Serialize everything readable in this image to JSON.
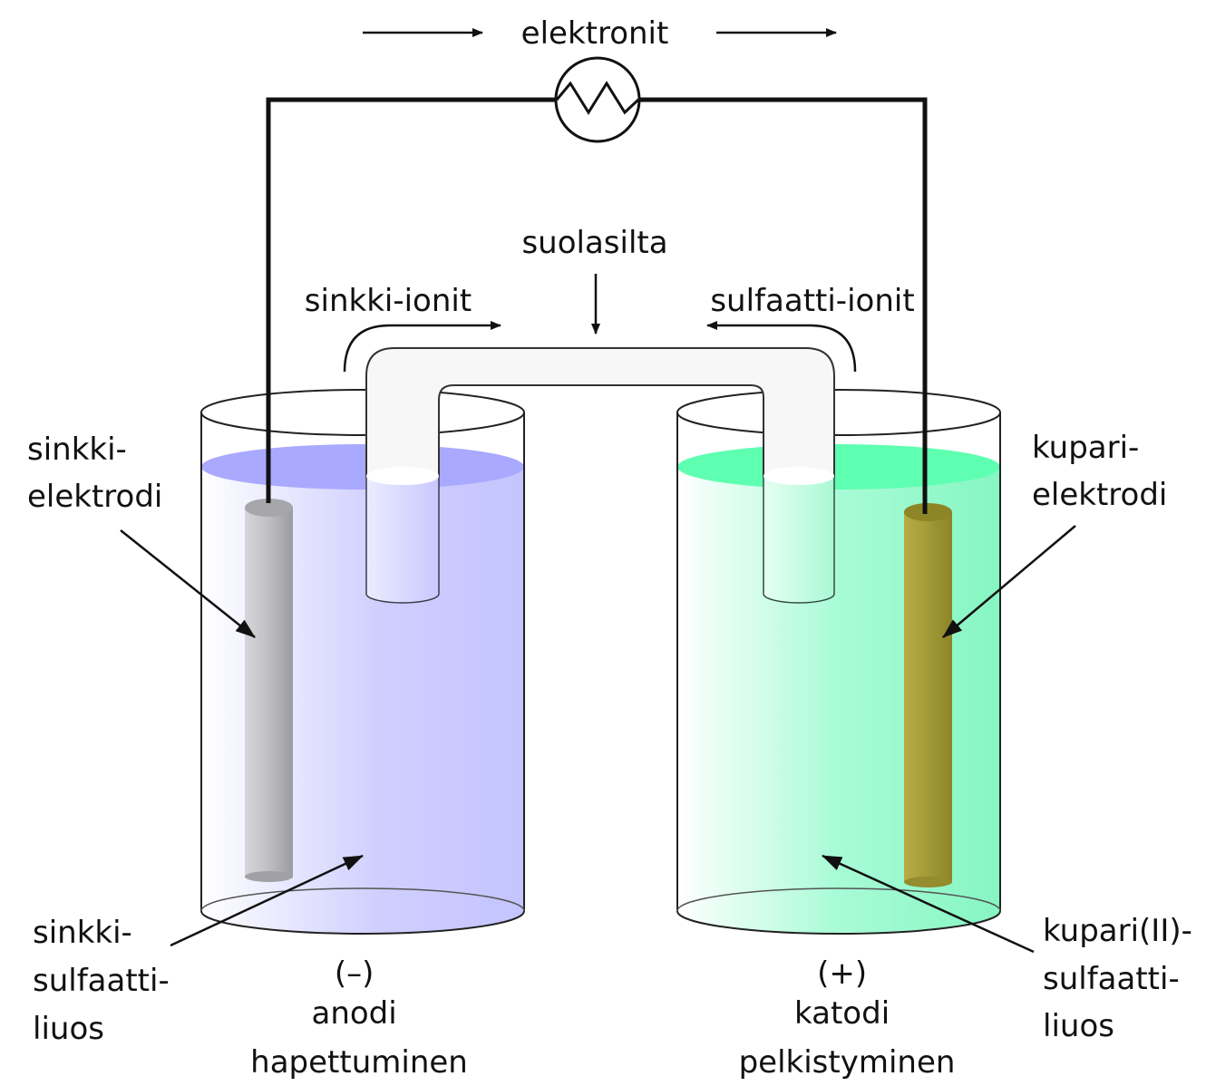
{
  "labels": {
    "electrons": "elektronit",
    "salt_bridge": "suolasilta",
    "zinc_ions": "sinkki-ionit",
    "sulfate_ions": "sulfaatti-ionit",
    "zinc_electrode": [
      "sinkki-",
      "elektrodi"
    ],
    "copper_electrode": [
      "kupari-",
      "elektrodi"
    ],
    "zinc_solution": [
      "sinkki-",
      "sulfaatti-",
      "liuos"
    ],
    "copper_solution": [
      "kupari(II)-",
      "sulfaatti-",
      "liuos"
    ],
    "anode": [
      "(–)",
      "anodi",
      "hapettuminen"
    ],
    "cathode": [
      "(+)",
      "katodi",
      "pelkistyminen"
    ]
  },
  "colors": {
    "zinc_solution": "#c4c4ff",
    "zinc_surface": "#a8a8ff",
    "copper_solution": "#8cf7c6",
    "copper_surface": "#5dffb0",
    "zinc_electrode": "#a3a3a8",
    "copper_electrode": "#9a9230",
    "salt_bridge": "#f7f7f7"
  }
}
